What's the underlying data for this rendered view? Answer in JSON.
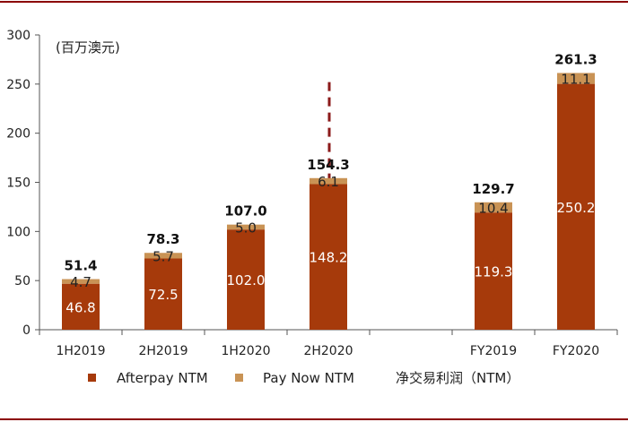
{
  "colors": {
    "afterpay": "#A63A0B",
    "paynow": "#C99355",
    "divider": "#8B1A1A",
    "frame": "#8B0000",
    "axis": "#555555"
  },
  "chart_data": {
    "type": "bar",
    "stacked": true,
    "unit_label": "(百万澳元)",
    "categories": [
      "1H2019",
      "2H2019",
      "1H2020",
      "2H2020",
      "",
      "FY2019",
      "FY2020"
    ],
    "series": [
      {
        "name": "Afterpay NTM",
        "values": [
          46.8,
          72.5,
          102.0,
          148.2,
          null,
          119.3,
          250.2
        ],
        "labels": [
          "46.8",
          "72.5",
          "102.0",
          "148.2",
          "",
          "119.3",
          "250.2"
        ]
      },
      {
        "name": "Pay Now NTM",
        "values": [
          4.7,
          5.7,
          5.0,
          6.1,
          null,
          10.4,
          11.1
        ],
        "labels": [
          "4.7",
          "5.7",
          "5.0",
          "6.1",
          "",
          "10.4",
          "11.1"
        ]
      }
    ],
    "totals": {
      "name": "净交易利润（NTM）",
      "values": [
        51.4,
        78.3,
        107.0,
        154.3,
        null,
        129.7,
        261.3
      ],
      "labels": [
        "51.4",
        "78.3",
        "107.0",
        "154.3",
        "",
        "129.7",
        "261.3"
      ]
    },
    "ylim": [
      0,
      300
    ],
    "yticks": [
      "0",
      "50",
      "100",
      "150",
      "200",
      "250",
      "300"
    ],
    "divider_after_category_index": 4,
    "legend_position": "bottom"
  }
}
